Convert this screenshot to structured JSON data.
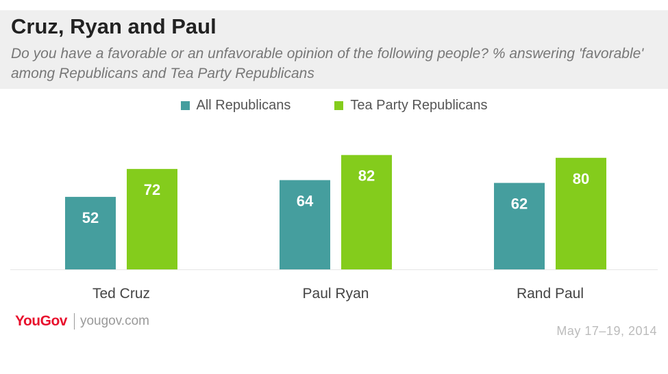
{
  "chart_data": {
    "type": "bar",
    "title": "Cruz, Ryan and Paul",
    "subtitle": "Do you have a favorable or an unfavorable opinion of the following people? % answering 'favorable' among Republicans and Tea Party Republicans",
    "categories": [
      "Ted Cruz",
      "Paul Ryan",
      "Rand Paul"
    ],
    "series": [
      {
        "name": "All Republicans",
        "values": [
          52,
          64,
          62
        ],
        "color": "#459e9e"
      },
      {
        "name": "Tea Party Republicans",
        "values": [
          72,
          82,
          80
        ],
        "color": "#84cc1c"
      }
    ],
    "ylim": [
      0,
      100
    ],
    "grid": false,
    "legend_position": "top-center"
  },
  "footer": {
    "logo": "YouGov",
    "site": "yougov.com",
    "date": "May 17–19, 2014"
  }
}
